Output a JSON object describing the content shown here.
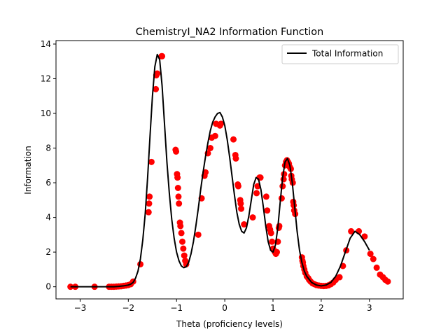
{
  "chart_data": {
    "type": "line",
    "title": "ChemistryI_NA2 Information Function",
    "xlabel": "Theta (proficiency levels)",
    "ylabel": "Information",
    "xlim": [
      -3.5,
      3.7
    ],
    "ylim": [
      -0.7,
      14.2
    ],
    "xticks": [
      -3,
      -2,
      -1,
      0,
      1,
      2,
      3
    ],
    "yticks": [
      0,
      2,
      4,
      6,
      8,
      10,
      12,
      14
    ],
    "grid": false,
    "legend_position": "top-right",
    "line_color": "#000000",
    "point_color": "#ff0000",
    "series": [
      {
        "name": "Total Information",
        "type": "line",
        "x": [
          -3.2,
          -2.6,
          -2.3,
          -2.2,
          -2.1,
          -2.0,
          -1.95,
          -1.9,
          -1.85,
          -1.8,
          -1.75,
          -1.7,
          -1.65,
          -1.6,
          -1.55,
          -1.5,
          -1.45,
          -1.4,
          -1.35,
          -1.3,
          -1.25,
          -1.2,
          -1.15,
          -1.1,
          -1.05,
          -1.0,
          -0.95,
          -0.9,
          -0.85,
          -0.8,
          -0.75,
          -0.7,
          -0.65,
          -0.6,
          -0.55,
          -0.5,
          -0.45,
          -0.4,
          -0.35,
          -0.3,
          -0.25,
          -0.2,
          -0.15,
          -0.1,
          -0.05,
          0.0,
          0.05,
          0.1,
          0.15,
          0.2,
          0.25,
          0.3,
          0.35,
          0.4,
          0.45,
          0.5,
          0.55,
          0.6,
          0.65,
          0.7,
          0.75,
          0.8,
          0.85,
          0.9,
          0.95,
          1.0,
          1.05,
          1.1,
          1.15,
          1.2,
          1.25,
          1.3,
          1.35,
          1.4,
          1.45,
          1.5,
          1.55,
          1.6,
          1.65,
          1.7,
          1.8,
          1.9,
          2.0,
          2.1,
          2.2,
          2.3,
          2.4,
          2.5,
          2.6,
          2.7,
          2.8,
          2.9,
          3.0
        ],
        "values": [
          0.0,
          0.0,
          0.0,
          0.02,
          0.05,
          0.1,
          0.15,
          0.25,
          0.5,
          0.9,
          1.6,
          2.7,
          4.2,
          6.3,
          8.7,
          11.0,
          12.7,
          13.4,
          13.1,
          11.6,
          9.4,
          7.2,
          5.4,
          3.9,
          2.8,
          2.0,
          1.5,
          1.2,
          1.1,
          1.15,
          1.4,
          1.9,
          2.6,
          3.5,
          4.5,
          5.6,
          6.6,
          7.5,
          8.3,
          9.0,
          9.5,
          9.8,
          10.0,
          10.05,
          9.8,
          9.3,
          8.5,
          7.5,
          6.4,
          5.3,
          4.3,
          3.6,
          3.2,
          3.1,
          3.4,
          4.1,
          5.0,
          5.9,
          6.3,
          6.2,
          5.6,
          4.6,
          3.5,
          2.6,
          2.1,
          2.0,
          2.4,
          3.4,
          4.9,
          6.3,
          7.2,
          7.4,
          7.0,
          6.0,
          4.6,
          3.2,
          2.1,
          1.4,
          0.9,
          0.6,
          0.25,
          0.1,
          0.05,
          0.1,
          0.25,
          0.6,
          1.2,
          2.0,
          2.8,
          3.2,
          3.0,
          2.6,
          2.1
        ]
      },
      {
        "name": "",
        "type": "scatter",
        "x": [
          -3.2,
          -3.1,
          -2.7,
          -2.4,
          -2.35,
          -2.3,
          -2.25,
          -2.2,
          -2.15,
          -2.1,
          -2.05,
          -2.0,
          -1.95,
          -1.9,
          -1.75,
          -1.58,
          -1.57,
          -1.56,
          -1.52,
          -1.43,
          -1.42,
          -1.4,
          -1.31,
          -1.3,
          -1.02,
          -1.01,
          -0.99,
          -0.98,
          -0.97,
          -0.96,
          -0.95,
          -0.93,
          -0.92,
          -0.9,
          -0.88,
          -0.86,
          -0.84,
          -0.82,
          -0.8,
          -0.55,
          -0.48,
          -0.42,
          -0.4,
          -0.35,
          -0.3,
          -0.27,
          -0.2,
          -0.18,
          -0.1,
          -0.08,
          0.18,
          0.22,
          0.23,
          0.27,
          0.28,
          0.32,
          0.33,
          0.34,
          0.4,
          0.58,
          0.66,
          0.68,
          0.72,
          0.74,
          0.86,
          0.88,
          0.92,
          0.94,
          0.96,
          0.98,
          1.0,
          1.02,
          1.04,
          1.06,
          1.08,
          1.1,
          1.12,
          1.13,
          1.18,
          1.2,
          1.22,
          1.23,
          1.25,
          1.27,
          1.29,
          1.31,
          1.33,
          1.35,
          1.37,
          1.38,
          1.39,
          1.41,
          1.42,
          1.43,
          1.44,
          1.46,
          1.6,
          1.61,
          1.62,
          1.63,
          1.65,
          1.67,
          1.7,
          1.73,
          1.75,
          1.78,
          1.82,
          1.86,
          1.9,
          1.95,
          2.0,
          2.05,
          2.1,
          2.15,
          2.2,
          2.25,
          2.3,
          2.38,
          2.45,
          2.52,
          2.62,
          2.78,
          2.9,
          3.02,
          3.08,
          3.15,
          3.22,
          3.28,
          3.33,
          3.38
        ],
        "values": [
          0.0,
          0.0,
          0.0,
          0.0,
          0.0,
          0.0,
          0.01,
          0.02,
          0.03,
          0.05,
          0.07,
          0.1,
          0.15,
          0.3,
          1.3,
          4.3,
          4.8,
          5.2,
          7.2,
          11.4,
          12.2,
          12.3,
          13.3,
          13.3,
          7.9,
          7.8,
          6.5,
          6.3,
          5.7,
          5.2,
          4.8,
          3.7,
          3.5,
          3.1,
          2.6,
          2.2,
          1.8,
          1.5,
          1.3,
          3.0,
          5.1,
          6.4,
          6.6,
          7.7,
          8.0,
          8.6,
          8.7,
          9.4,
          9.3,
          9.4,
          8.5,
          7.6,
          7.4,
          5.9,
          5.8,
          5.0,
          4.8,
          4.5,
          3.6,
          4.0,
          5.4,
          5.8,
          6.3,
          6.3,
          5.2,
          4.4,
          3.5,
          3.3,
          3.1,
          2.6,
          2.2,
          2.1,
          2.0,
          1.9,
          2.0,
          2.6,
          3.4,
          3.5,
          5.1,
          5.8,
          6.2,
          6.5,
          7.0,
          7.2,
          7.3,
          7.2,
          7.1,
          6.9,
          6.8,
          6.4,
          6.2,
          6.0,
          4.9,
          4.7,
          4.4,
          4.2,
          1.7,
          1.5,
          1.4,
          1.2,
          1.0,
          0.8,
          0.6,
          0.5,
          0.4,
          0.3,
          0.2,
          0.15,
          0.1,
          0.07,
          0.05,
          0.04,
          0.05,
          0.08,
          0.15,
          0.25,
          0.4,
          0.55,
          1.2,
          2.1,
          3.2,
          3.2,
          2.9,
          1.9,
          1.6,
          1.1,
          0.7,
          0.55,
          0.4,
          0.3
        ]
      }
    ],
    "legend": [
      {
        "label": "Total Information",
        "style": "line",
        "color": "#000000"
      }
    ]
  }
}
